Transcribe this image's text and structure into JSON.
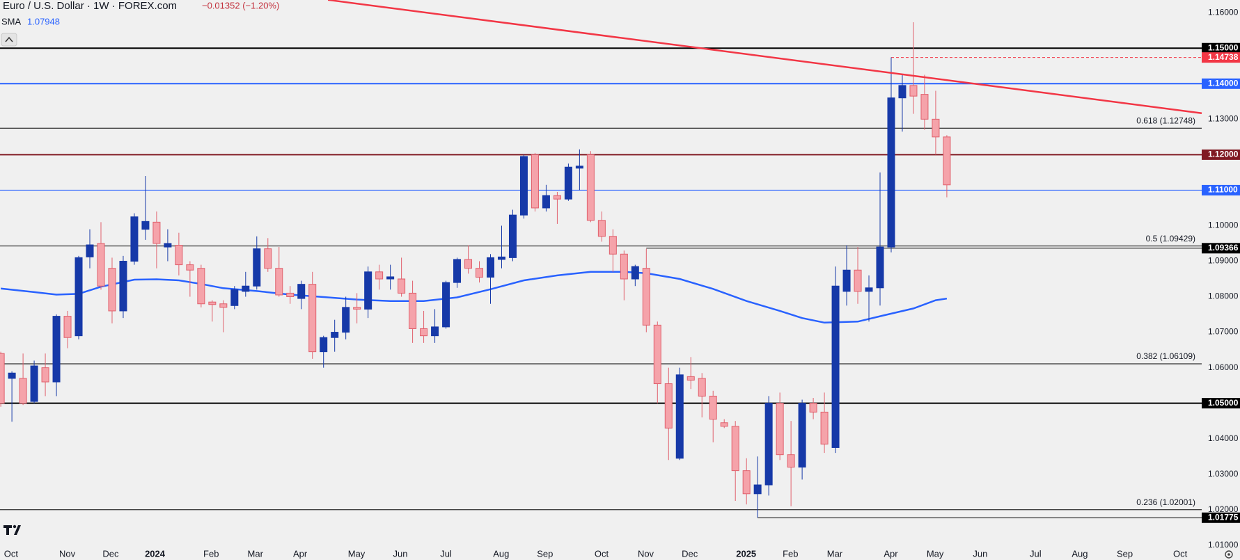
{
  "chart_data": {
    "type": "candlestick",
    "title": "Euro / U.S. Dollar · 1W · FOREX.com",
    "change": "−0.01352 (−1.20%)",
    "indicator": "SMA",
    "indicator_value": 1.07948,
    "up_color": "#1639a8",
    "down_color": "#f5a3aa",
    "down_edge": "#e0606c",
    "x": [
      0,
      1,
      2,
      3,
      4,
      5,
      6,
      7,
      8,
      9,
      10,
      11,
      12,
      13,
      14,
      15,
      16,
      17,
      18,
      19,
      20,
      21,
      22,
      23,
      24,
      25,
      26,
      27,
      28,
      29,
      30,
      31,
      32,
      33,
      34,
      35,
      36,
      37,
      38,
      39,
      40,
      41,
      42,
      43,
      44,
      45,
      46,
      47,
      48,
      49,
      50,
      51,
      52,
      53,
      54,
      55,
      56,
      57,
      58,
      59,
      60,
      61,
      62,
      63,
      64,
      65,
      66,
      67,
      68,
      69,
      70,
      71,
      72,
      73,
      74,
      75,
      76,
      77,
      78,
      79,
      80,
      81,
      82,
      83,
      84,
      85
    ],
    "open": [
      1.064,
      1.057,
      1.057,
      1.0505,
      1.06,
      1.056,
      1.0745,
      1.069,
      1.0912,
      1.095,
      1.088,
      1.076,
      1.09,
      1.099,
      1.101,
      1.094,
      1.0945,
      1.089,
      1.088,
      1.0785,
      1.078,
      1.0775,
      1.0815,
      1.083,
      1.0935,
      1.088,
      1.081,
      1.0795,
      1.0835,
      1.0645,
      1.0685,
      1.07,
      1.077,
      1.0765,
      1.087,
      1.085,
      1.085,
      1.081,
      1.071,
      1.069,
      1.0715,
      1.084,
      1.0905,
      1.088,
      1.0855,
      1.0905,
      1.091,
      1.103,
      1.12,
      1.105,
      1.1085,
      1.1075,
      1.1162,
      1.12,
      1.1015,
      1.097,
      1.092,
      1.085,
      1.088,
      1.072,
      1.0555,
      1.0345,
      1.0575,
      1.057,
      1.052,
      1.0445,
      1.0435,
      1.031,
      1.0245,
      1.027,
      1.05,
      1.0355,
      1.032,
      1.05,
      1.0475,
      1.0375,
      1.0815,
      1.0875,
      1.0815,
      1.0825,
      1.094,
      1.136,
      1.1395,
      1.137,
      1.13,
      1.125
    ],
    "high": [
      1.0645,
      1.059,
      1.064,
      1.062,
      1.064,
      1.075,
      1.076,
      1.0915,
      1.099,
      1.101,
      1.091,
      1.0915,
      1.1035,
      1.114,
      1.104,
      1.099,
      1.098,
      1.09,
      1.089,
      1.079,
      1.079,
      1.083,
      1.087,
      1.097,
      1.0965,
      1.094,
      1.083,
      1.0845,
      1.087,
      1.069,
      1.0735,
      1.08,
      1.081,
      1.0885,
      1.089,
      1.089,
      1.091,
      1.0845,
      1.076,
      1.0765,
      1.0845,
      1.091,
      1.0945,
      1.09,
      1.092,
      1.1,
      1.1045,
      1.12,
      1.1205,
      1.1115,
      1.1095,
      1.1175,
      1.1215,
      1.121,
      1.104,
      1.099,
      1.093,
      1.089,
      1.0935,
      1.073,
      1.06,
      1.06,
      1.063,
      1.0585,
      1.0535,
      1.0455,
      1.045,
      1.0345,
      1.035,
      1.052,
      1.053,
      1.045,
      1.051,
      1.0515,
      1.053,
      1.0885,
      1.0945,
      1.094,
      1.086,
      1.115,
      1.1474,
      1.1425,
      1.1573,
      1.1425,
      1.138,
      1.1255
    ],
    "low": [
      1.049,
      1.0448,
      1.0495,
      1.05,
      1.052,
      1.052,
      1.0655,
      1.068,
      1.088,
      1.082,
      1.0725,
      1.074,
      1.089,
      1.096,
      1.088,
      1.09,
      1.086,
      1.08,
      1.077,
      1.073,
      1.07,
      1.0765,
      1.08,
      1.082,
      1.087,
      1.08,
      1.078,
      1.0765,
      1.0625,
      1.06,
      1.0645,
      1.068,
      1.0725,
      1.074,
      1.082,
      1.082,
      1.08,
      1.067,
      1.067,
      1.067,
      1.071,
      1.0825,
      1.0865,
      1.084,
      1.078,
      1.088,
      1.09,
      1.102,
      1.104,
      1.104,
      1.1005,
      1.107,
      1.11,
      1.101,
      1.0955,
      1.087,
      1.079,
      1.083,
      1.07,
      1.05,
      1.034,
      1.034,
      1.054,
      1.046,
      1.039,
      1.043,
      1.0225,
      1.0215,
      1.0178,
      1.024,
      1.034,
      1.021,
      1.0285,
      1.0455,
      1.036,
      1.036,
      1.0775,
      1.078,
      1.073,
      1.0775,
      1.0925,
      1.1265,
      1.1315,
      1.127,
      1.12,
      1.108
    ],
    "close": [
      1.05,
      1.0585,
      1.05,
      1.0605,
      1.056,
      1.0745,
      1.0685,
      1.091,
      1.0946,
      1.083,
      1.076,
      1.09,
      1.1025,
      1.1012,
      1.095,
      1.095,
      1.089,
      1.0875,
      1.078,
      1.0778,
      1.077,
      1.082,
      1.083,
      1.0935,
      1.088,
      1.0805,
      1.08,
      1.0835,
      1.0645,
      1.0685,
      1.07,
      1.077,
      1.0765,
      1.087,
      1.085,
      1.0856,
      1.081,
      1.071,
      1.069,
      1.0715,
      1.084,
      1.0905,
      1.088,
      1.0855,
      1.091,
      1.0912,
      1.103,
      1.1195,
      1.105,
      1.1085,
      1.1075,
      1.1165,
      1.1168,
      1.1015,
      1.097,
      1.092,
      1.085,
      1.0885,
      1.072,
      1.0555,
      1.043,
      1.058,
      1.0565,
      1.052,
      1.0455,
      1.0435,
      1.031,
      1.0245,
      1.027,
      1.05,
      1.0355,
      1.032,
      1.05,
      1.0475,
      1.0385,
      1.083,
      1.0875,
      1.0815,
      1.0825,
      1.094,
      1.136,
      1.1395,
      1.1365,
      1.13,
      1.125,
      1.1115
    ],
    "sma": {
      "color": "#2962ff",
      "x": [
        0,
        3,
        5,
        7,
        9,
        12,
        14,
        16,
        18,
        20,
        23,
        26,
        29,
        32,
        35,
        38,
        41,
        44,
        47,
        50,
        53,
        56,
        58,
        61,
        64,
        67,
        70,
        72,
        74,
        77,
        79,
        82,
        84,
        85
      ],
      "values": [
        1.0823,
        1.0813,
        1.0806,
        1.0808,
        1.0828,
        1.0848,
        1.0849,
        1.0846,
        1.0836,
        1.0824,
        1.0816,
        1.0806,
        1.0799,
        1.0792,
        1.0788,
        1.0788,
        1.0798,
        1.0821,
        1.0846,
        1.086,
        1.087,
        1.087,
        1.0866,
        1.085,
        1.0822,
        1.0788,
        1.076,
        1.074,
        1.0727,
        1.073,
        1.0745,
        1.0767,
        1.079,
        1.07948
      ]
    },
    "trendline": {
      "color": "#f23645",
      "x": [
        29.4,
        107.9
      ],
      "values": [
        1.1636,
        1.1317
      ]
    },
    "levels": [
      {
        "value": 1.15,
        "label": "1.15000",
        "color": "#000000",
        "width": 2
      },
      {
        "value": 1.14738,
        "label": "1.14738",
        "color": "#f23645",
        "width": 1,
        "dashed": true,
        "from": 80
      },
      {
        "value": 1.14,
        "label": "1.14000",
        "color": "#2962ff",
        "width": 2
      },
      {
        "value": 1.12,
        "label": "1.12000",
        "color": "#801922",
        "width": 2
      },
      {
        "value": 1.11,
        "label": "1.11000",
        "color": "#2962ff",
        "width": 1
      },
      {
        "value": 1.09366,
        "label": "1.09366",
        "color": "#000000",
        "width": 1,
        "from": 58
      },
      {
        "value": 1.05,
        "label": "1.05000",
        "color": "#000000",
        "width": 2
      },
      {
        "value": 1.01775,
        "label": "1.01775",
        "color": "#000000",
        "width": 1,
        "from": 68
      }
    ],
    "fib": [
      {
        "value": 1.12748,
        "label": "0.618 (1.12748)"
      },
      {
        "value": 1.09429,
        "label": "0.5 (1.09429)"
      },
      {
        "value": 1.06109,
        "label": "0.382 (1.06109)"
      },
      {
        "value": 1.02001,
        "label": "0.236 (1.02001)"
      }
    ],
    "xlim": [
      -0.07,
      107.9
    ],
    "xticks": [
      {
        "value": 0.92,
        "label": "Oct"
      },
      {
        "value": 5.97,
        "label": "Nov"
      },
      {
        "value": 9.87,
        "label": "Dec"
      },
      {
        "value": 13.85,
        "label": "2024"
      },
      {
        "value": 18.9,
        "label": "Feb"
      },
      {
        "value": 22.87,
        "label": "Mar"
      },
      {
        "value": 26.9,
        "label": "Apr"
      },
      {
        "value": 31.96,
        "label": "May"
      },
      {
        "value": 35.9,
        "label": "Jun"
      },
      {
        "value": 40.0,
        "label": "Jul"
      },
      {
        "value": 44.96,
        "label": "Aug"
      },
      {
        "value": 48.9,
        "label": "Sep"
      },
      {
        "value": 53.98,
        "label": "Oct"
      },
      {
        "value": 57.95,
        "label": "Nov"
      },
      {
        "value": 61.9,
        "label": "Dec"
      },
      {
        "value": 66.97,
        "label": "2025"
      },
      {
        "value": 70.95,
        "label": "Feb"
      },
      {
        "value": 74.93,
        "label": "Mar"
      },
      {
        "value": 79.97,
        "label": "Apr"
      },
      {
        "value": 83.95,
        "label": "May"
      },
      {
        "value": 88.0,
        "label": "Jun"
      },
      {
        "value": 92.97,
        "label": "Jul"
      },
      {
        "value": 96.95,
        "label": "Aug"
      },
      {
        "value": 100.99,
        "label": "Sep"
      },
      {
        "value": 105.97,
        "label": "Oct"
      }
    ],
    "ylim": [
      1.00996,
      1.16357
    ],
    "yticks": [
      {
        "value": 1.16,
        "label": "1.16000"
      },
      {
        "value": 1.13,
        "label": "1.13000"
      },
      {
        "value": 1.1,
        "label": "1.10000"
      },
      {
        "value": 1.09,
        "label": "1.09000"
      },
      {
        "value": 1.08,
        "label": "1.08000"
      },
      {
        "value": 1.07,
        "label": "1.07000"
      },
      {
        "value": 1.06,
        "label": "1.06000"
      },
      {
        "value": 1.04,
        "label": "1.04000"
      },
      {
        "value": 1.03,
        "label": "1.03000"
      },
      {
        "value": 1.02,
        "label": "1.02000"
      },
      {
        "value": 1.01,
        "label": "1.01000"
      }
    ]
  }
}
